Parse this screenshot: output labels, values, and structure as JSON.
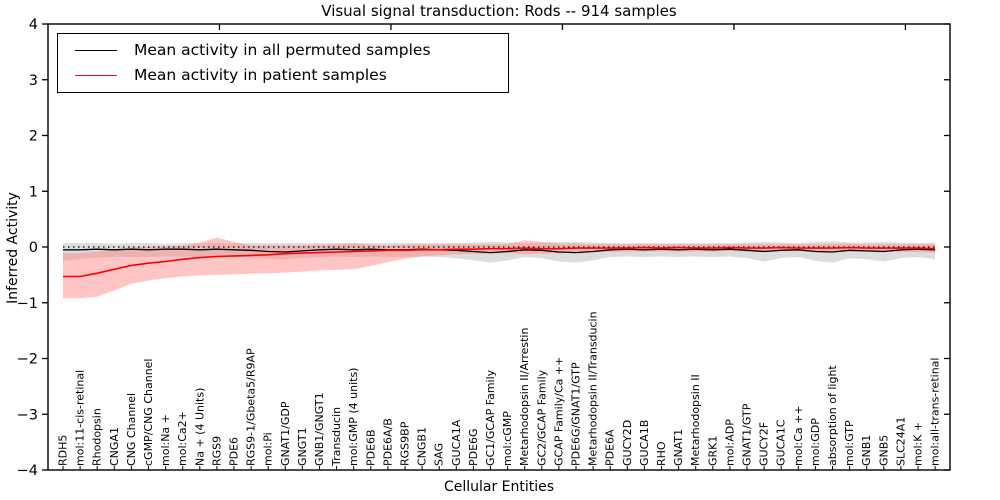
{
  "title": "Visual signal transduction: Rods -- 914 samples",
  "axes": {
    "x_label": "Cellular Entities",
    "y_label": "Inferred Activity",
    "y_tick_values": [
      4,
      3,
      2,
      1,
      0,
      -1,
      -2,
      -3,
      -4
    ]
  },
  "legend": {
    "entries": [
      {
        "label": "Mean activity in all permuted samples",
        "color": "#000000"
      },
      {
        "label": "Mean activity in patient samples",
        "color": "#ff0000"
      }
    ]
  },
  "colors": {
    "permuted_line": "#000000",
    "patient_line": "#ff0000",
    "permuted_band": "#c0c0c0",
    "patient_band": "#ff7f7f",
    "zero_line": "#000000",
    "frame": "#000000"
  },
  "chart_data": {
    "type": "line",
    "title": "Visual signal transduction: Rods -- 914 samples",
    "xlabel": "Cellular Entities",
    "ylabel": "Inferred Activity",
    "ylim": [
      -4,
      4
    ],
    "grid": false,
    "legend_position": "upper left",
    "reference_line": {
      "y": 0,
      "style": "dotted",
      "color": "#000000"
    },
    "categories": [
      "RDH5",
      "mol:11-cis-retinal",
      "Rhodopsin",
      "CNGA1",
      "CNG Channel",
      "cGMP/CNG Channel",
      "mol:Na +",
      "mol:Ca2+",
      "Na + (4 Units)",
      "RGS9",
      "PDE6",
      "RGS9-1/Gbeta5/R9AP",
      "mol:Pi",
      "GNAT1/GDP",
      "GNGT1",
      "GNB1/GNGT1",
      "Transducin",
      "mol:GMP (4 units)",
      "PDE6B",
      "PDE6A/B",
      "RGS9BP",
      "CNGB1",
      "SAG",
      "GUCA1A",
      "PDE6G",
      "GC1/GCAP Family",
      "mol:cGMP",
      "Metarhodopsin II/Arrestin",
      "GC2/GCAP Family",
      "GCAP Family/Ca ++",
      "PDE6G/GNAT1/GTP",
      "Metarhodopsin II/Transducin",
      "PDE6A",
      "GUCY2D",
      "GUCA1B",
      "RHO",
      "GNAT1",
      "Metarhodopsin II",
      "GRK1",
      "mol:ADP",
      "GNAT1/GTP",
      "GUCY2F",
      "GUCA1C",
      "mol:Ca ++",
      "mol:GDP",
      "absorption of light",
      "mol:GTP",
      "GNB1",
      "GNB5",
      "SLC24A1",
      "mol:K +",
      "mol:all-trans-retinal"
    ],
    "series": [
      {
        "name": "Mean activity in all permuted samples",
        "color": "#000000",
        "band_color": "#c0c0c0",
        "mean": [
          -0.05,
          -0.05,
          -0.04,
          -0.05,
          -0.04,
          -0.05,
          -0.04,
          -0.04,
          -0.05,
          -0.04,
          -0.05,
          -0.06,
          -0.08,
          -0.09,
          -0.07,
          -0.05,
          -0.04,
          -0.05,
          -0.04,
          -0.05,
          -0.05,
          -0.04,
          -0.05,
          -0.06,
          -0.08,
          -0.1,
          -0.08,
          -0.05,
          -0.06,
          -0.09,
          -0.1,
          -0.08,
          -0.05,
          -0.04,
          -0.05,
          -0.04,
          -0.05,
          -0.04,
          -0.05,
          -0.04,
          -0.06,
          -0.08,
          -0.06,
          -0.05,
          -0.08,
          -0.09,
          -0.06,
          -0.07,
          -0.08,
          -0.05,
          -0.04,
          -0.05
        ],
        "lo": [
          -0.25,
          -0.22,
          -0.19,
          -0.18,
          -0.18,
          -0.18,
          -0.17,
          -0.17,
          -0.18,
          -0.17,
          -0.18,
          -0.19,
          -0.21,
          -0.22,
          -0.2,
          -0.18,
          -0.17,
          -0.18,
          -0.17,
          -0.18,
          -0.18,
          -0.17,
          -0.18,
          -0.2,
          -0.24,
          -0.28,
          -0.24,
          -0.18,
          -0.2,
          -0.26,
          -0.28,
          -0.24,
          -0.18,
          -0.17,
          -0.18,
          -0.17,
          -0.18,
          -0.17,
          -0.18,
          -0.17,
          -0.2,
          -0.26,
          -0.2,
          -0.18,
          -0.25,
          -0.28,
          -0.2,
          -0.22,
          -0.26,
          -0.2,
          -0.18,
          -0.22
        ],
        "hi": [
          0.07,
          0.07,
          0.07,
          0.06,
          0.07,
          0.07,
          0.06,
          0.07,
          0.07,
          0.07,
          0.07,
          0.07,
          0.07,
          0.07,
          0.07,
          0.07,
          0.07,
          0.07,
          0.07,
          0.07,
          0.07,
          0.07,
          0.07,
          0.07,
          0.08,
          0.09,
          0.08,
          0.07,
          0.08,
          0.09,
          0.09,
          0.08,
          0.07,
          0.07,
          0.07,
          0.07,
          0.07,
          0.07,
          0.07,
          0.07,
          0.08,
          0.09,
          0.08,
          0.07,
          0.09,
          0.1,
          0.08,
          0.08,
          0.09,
          0.08,
          0.07,
          0.08
        ]
      },
      {
        "name": "Mean activity in patient samples",
        "color": "#ff0000",
        "band_color": "#ff7f7f",
        "mean": [
          -0.53,
          -0.53,
          -0.47,
          -0.4,
          -0.33,
          -0.29,
          -0.26,
          -0.22,
          -0.19,
          -0.17,
          -0.16,
          -0.15,
          -0.14,
          -0.12,
          -0.11,
          -0.1,
          -0.09,
          -0.08,
          -0.07,
          -0.06,
          -0.06,
          -0.05,
          -0.05,
          -0.04,
          -0.04,
          -0.03,
          -0.03,
          -0.02,
          -0.03,
          -0.03,
          -0.02,
          -0.02,
          -0.02,
          -0.02,
          -0.01,
          -0.02,
          -0.01,
          -0.02,
          -0.02,
          -0.01,
          -0.02,
          -0.02,
          -0.01,
          -0.02,
          -0.02,
          -0.02,
          -0.01,
          -0.02,
          -0.02,
          -0.02,
          -0.02,
          -0.03
        ],
        "lo": [
          -0.92,
          -0.92,
          -0.89,
          -0.78,
          -0.66,
          -0.6,
          -0.56,
          -0.53,
          -0.51,
          -0.5,
          -0.49,
          -0.48,
          -0.47,
          -0.46,
          -0.44,
          -0.42,
          -0.41,
          -0.4,
          -0.34,
          -0.27,
          -0.21,
          -0.17,
          -0.15,
          -0.13,
          -0.12,
          -0.12,
          -0.11,
          -0.13,
          -0.12,
          -0.11,
          -0.1,
          -0.09,
          -0.09,
          -0.08,
          -0.08,
          -0.08,
          -0.08,
          -0.08,
          -0.08,
          -0.07,
          -0.08,
          -0.08,
          -0.07,
          -0.07,
          -0.08,
          -0.08,
          -0.08,
          -0.08,
          -0.09,
          -0.09,
          -0.09,
          -0.1
        ],
        "hi": [
          -0.11,
          -0.11,
          -0.08,
          -0.04,
          -0.01,
          0.0,
          0.01,
          0.02,
          0.08,
          0.17,
          0.09,
          0.03,
          0.03,
          0.03,
          0.03,
          0.04,
          0.05,
          0.07,
          0.04,
          0.03,
          0.04,
          0.05,
          0.05,
          0.05,
          0.05,
          0.05,
          0.06,
          0.12,
          0.09,
          0.06,
          0.06,
          0.05,
          0.05,
          0.05,
          0.05,
          0.05,
          0.05,
          0.05,
          0.05,
          0.05,
          0.05,
          0.05,
          0.05,
          0.05,
          0.05,
          0.06,
          0.06,
          0.05,
          0.05,
          0.05,
          0.05,
          0.05
        ]
      }
    ]
  }
}
